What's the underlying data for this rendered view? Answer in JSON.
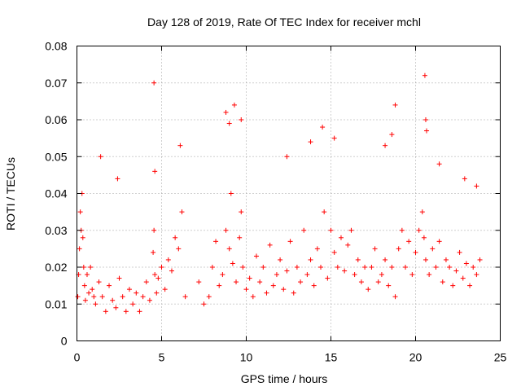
{
  "chart_data": {
    "type": "scatter",
    "title": "Day 128 of 2019, Rate Of TEC Index for receiver mchl",
    "xlabel": "GPS time / hours",
    "ylabel": "ROTI / TECUs",
    "xlim": [
      0,
      25
    ],
    "ylim": [
      0,
      0.08
    ],
    "x_ticks": [
      0,
      5,
      10,
      15,
      20,
      25
    ],
    "x_tick_labels": [
      "0",
      "5",
      "10",
      "15",
      "20",
      "25"
    ],
    "y_ticks": [
      0,
      0.01,
      0.02,
      0.03,
      0.04,
      0.05,
      0.06,
      0.07,
      0.08
    ],
    "y_tick_labels": [
      "0",
      "0.01",
      "0.02",
      "0.03",
      "0.04",
      "0.05",
      "0.06",
      "0.07",
      "0.08"
    ],
    "grid": true,
    "marker": "+",
    "series_color": "#ff0000",
    "series": [
      {
        "name": "ROTI",
        "x": [
          0.05,
          0.1,
          0.15,
          0.2,
          0.25,
          0.3,
          0.35,
          0.4,
          0.45,
          0.5,
          0.6,
          0.7,
          0.8,
          0.9,
          1.0,
          1.1,
          1.3,
          1.5,
          1.7,
          1.9,
          2.1,
          2.3,
          2.5,
          2.7,
          2.9,
          3.1,
          3.3,
          3.5,
          3.7,
          3.9,
          4.1,
          4.3,
          4.5,
          4.55,
          4.6,
          4.7,
          4.8,
          5.0,
          5.2,
          5.4,
          5.6,
          5.8,
          6.0,
          6.2,
          6.4,
          7.2,
          7.5,
          7.8,
          8.0,
          8.2,
          8.4,
          8.6,
          8.8,
          9.0,
          9.1,
          9.2,
          9.4,
          9.6,
          9.7,
          9.8,
          10.0,
          10.2,
          10.4,
          10.6,
          10.8,
          11.0,
          11.2,
          11.4,
          11.6,
          11.8,
          12.0,
          12.2,
          12.4,
          12.6,
          12.8,
          13.0,
          13.2,
          13.4,
          13.6,
          13.8,
          14.0,
          14.2,
          14.4,
          14.6,
          14.8,
          15.0,
          15.2,
          15.4,
          15.6,
          15.8,
          16.0,
          16.2,
          16.4,
          16.6,
          16.8,
          17.0,
          17.2,
          17.4,
          17.6,
          17.8,
          18.0,
          18.2,
          18.4,
          18.6,
          18.8,
          19.0,
          19.2,
          19.4,
          19.6,
          19.8,
          20.0,
          20.2,
          20.4,
          20.5,
          20.6,
          20.8,
          21.0,
          21.2,
          21.4,
          21.6,
          21.8,
          22.0,
          22.2,
          22.4,
          22.6,
          22.8,
          23.0,
          23.2,
          23.4,
          23.6,
          23.8,
          1.4,
          2.4,
          4.55,
          4.6,
          6.1,
          8.8,
          9.0,
          9.3,
          9.7,
          12.4,
          13.8,
          14.5,
          15.2,
          18.2,
          18.6,
          18.8,
          20.55,
          20.6,
          20.65,
          21.4,
          22.9,
          23.6
        ],
        "y": [
          0.012,
          0.018,
          0.025,
          0.035,
          0.03,
          0.04,
          0.028,
          0.02,
          0.015,
          0.011,
          0.018,
          0.013,
          0.02,
          0.014,
          0.012,
          0.01,
          0.016,
          0.012,
          0.008,
          0.015,
          0.011,
          0.009,
          0.017,
          0.012,
          0.008,
          0.014,
          0.01,
          0.013,
          0.008,
          0.012,
          0.016,
          0.011,
          0.024,
          0.03,
          0.018,
          0.013,
          0.017,
          0.02,
          0.014,
          0.022,
          0.019,
          0.028,
          0.025,
          0.035,
          0.012,
          0.016,
          0.01,
          0.012,
          0.02,
          0.027,
          0.015,
          0.018,
          0.03,
          0.025,
          0.04,
          0.021,
          0.016,
          0.028,
          0.035,
          0.02,
          0.014,
          0.017,
          0.012,
          0.023,
          0.016,
          0.02,
          0.013,
          0.026,
          0.015,
          0.018,
          0.022,
          0.014,
          0.019,
          0.027,
          0.013,
          0.02,
          0.016,
          0.03,
          0.018,
          0.022,
          0.015,
          0.025,
          0.02,
          0.035,
          0.017,
          0.03,
          0.024,
          0.02,
          0.028,
          0.019,
          0.026,
          0.03,
          0.018,
          0.022,
          0.016,
          0.02,
          0.014,
          0.02,
          0.025,
          0.016,
          0.018,
          0.022,
          0.015,
          0.02,
          0.012,
          0.025,
          0.03,
          0.02,
          0.027,
          0.018,
          0.024,
          0.03,
          0.035,
          0.028,
          0.022,
          0.018,
          0.025,
          0.02,
          0.027,
          0.016,
          0.022,
          0.02,
          0.015,
          0.019,
          0.024,
          0.017,
          0.021,
          0.015,
          0.02,
          0.018,
          0.022,
          0.05,
          0.044,
          0.07,
          0.046,
          0.053,
          0.062,
          0.059,
          0.064,
          0.06,
          0.05,
          0.054,
          0.058,
          0.055,
          0.053,
          0.056,
          0.064,
          0.072,
          0.06,
          0.057,
          0.048,
          0.044,
          0.042
        ]
      }
    ]
  }
}
